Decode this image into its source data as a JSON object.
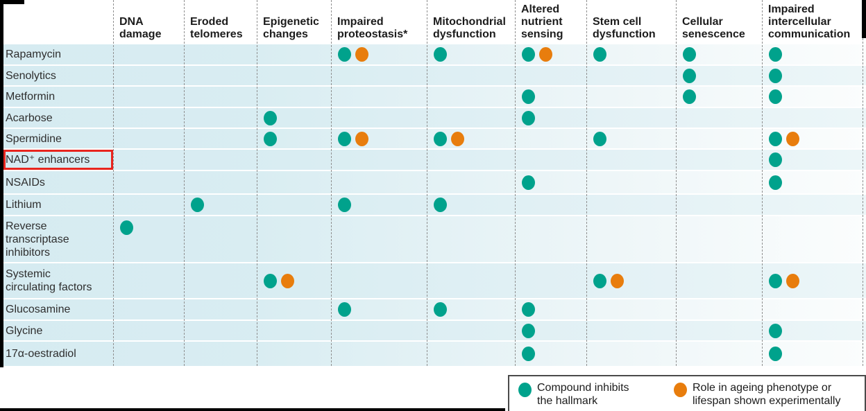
{
  "chart_data": {
    "type": "table",
    "description": "Matrix of compounds (rows) versus hallmarks of ageing (columns); dots mark which hallmark each compound targets",
    "columns": [
      "DNA damage",
      "Eroded telomeres",
      "Epigenetic changes",
      "Impaired proteostasis*",
      "Mitochondrial dysfunction",
      "Altered nutrient sensing",
      "Stem cell dysfunction",
      "Cellular senescence",
      "Impaired intercellular communication"
    ],
    "cell_codes": {
      "T": "teal dot — compound inhibits the hallmark",
      "TO": "teal dot plus orange dot — inhibits hallmark and role shown experimentally",
      "": "no dot"
    },
    "rows": [
      {
        "label": "Rapamycin",
        "highlight": false,
        "cells": [
          "",
          "",
          "",
          "TO",
          "T",
          "TO",
          "T",
          "T",
          "T"
        ]
      },
      {
        "label": "Senolytics",
        "highlight": false,
        "cells": [
          "",
          "",
          "",
          "",
          "",
          "",
          "",
          "T",
          "T"
        ]
      },
      {
        "label": "Metformin",
        "highlight": false,
        "cells": [
          "",
          "",
          "",
          "",
          "",
          "T",
          "",
          "T",
          "T"
        ]
      },
      {
        "label": "Acarbose",
        "highlight": false,
        "cells": [
          "",
          "",
          "T",
          "",
          "",
          "T",
          "",
          "",
          ""
        ]
      },
      {
        "label": "Spermidine",
        "highlight": false,
        "cells": [
          "",
          "",
          "T",
          "TO",
          "TO",
          "",
          "T",
          "",
          "TO"
        ]
      },
      {
        "label": "NAD⁺ enhancers",
        "highlight": true,
        "cells": [
          "",
          "",
          "",
          "",
          "",
          "",
          "",
          "",
          "T"
        ]
      },
      {
        "label": "NSAIDs",
        "highlight": false,
        "cells": [
          "",
          "",
          "",
          "",
          "",
          "T",
          "",
          "",
          "T"
        ]
      },
      {
        "label": "Lithium",
        "highlight": false,
        "cells": [
          "",
          "T",
          "",
          "T",
          "T",
          "",
          "",
          "",
          ""
        ]
      },
      {
        "label": "Reverse\ntranscriptase\ninhibitors",
        "highlight": false,
        "cells": [
          "T",
          "",
          "",
          "",
          "",
          "",
          "",
          "",
          ""
        ]
      },
      {
        "label": "Systemic\ncirculating factors",
        "highlight": false,
        "cells": [
          "",
          "",
          "TO",
          "",
          "",
          "",
          "TO",
          "",
          "TO"
        ]
      },
      {
        "label": "Glucosamine",
        "highlight": false,
        "cells": [
          "",
          "",
          "",
          "T",
          "T",
          "T",
          "",
          "",
          ""
        ]
      },
      {
        "label": "Glycine",
        "highlight": false,
        "cells": [
          "",
          "",
          "",
          "",
          "",
          "T",
          "",
          "",
          "T"
        ]
      },
      {
        "label": "17α-oestradiol",
        "highlight": false,
        "cells": [
          "",
          "",
          "",
          "",
          "",
          "T",
          "",
          "",
          "T"
        ]
      }
    ],
    "highlighted_row": "NAD⁺ enhancers",
    "legend": [
      {
        "symbol": "teal-dot",
        "color": "#00a28c",
        "label": "Compound inhibits\nthe hallmark"
      },
      {
        "symbol": "orange-dot",
        "color": "#e87d0d",
        "label": "Role in ageing phenotype or\nlifespan shown experimentally"
      }
    ],
    "colors": {
      "teal": "#00a28c",
      "orange": "#e87d0d",
      "highlight_red": "#e8251e",
      "row_tint": "#d9edf2"
    },
    "grid": "dashed vertical column separators",
    "legend_position": "bottom-right"
  }
}
